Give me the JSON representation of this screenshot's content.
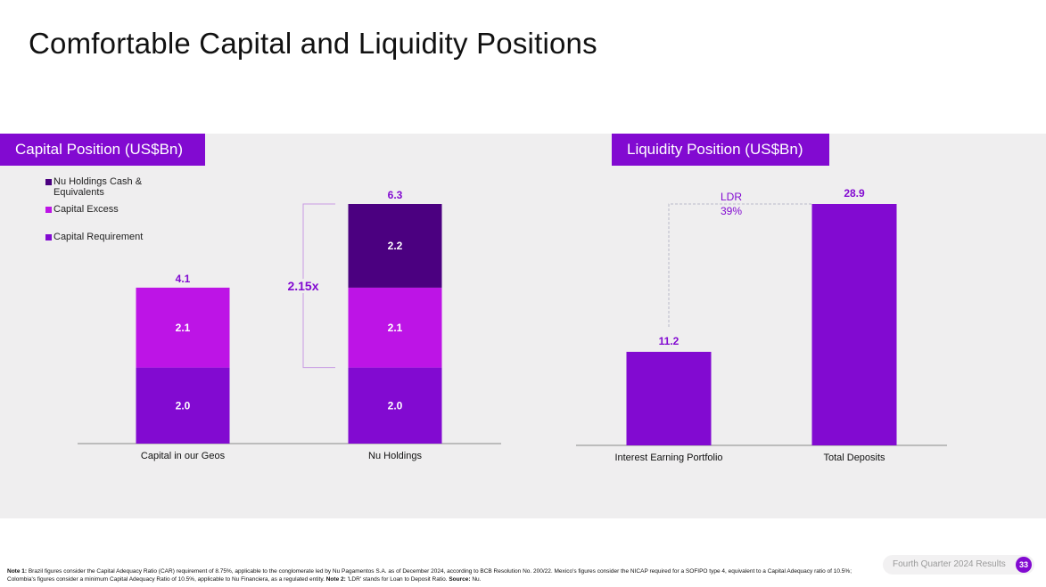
{
  "title": "Comfortable Capital and Liquidity Positions",
  "colors": {
    "capital_requirement": "#820ad1",
    "capital_excess": "#bd14e6",
    "cash": "#4b0080",
    "panel_label_bg": "#820ad1",
    "accent_text": "#820ad1",
    "bracket": "#c89ae3",
    "band_bg": "#efeeef"
  },
  "capital": {
    "label": "Capital Position  (US$Bn)",
    "legend": [
      {
        "label": "Nu Holdings Cash & Equivalents",
        "color_key": "cash"
      },
      {
        "label": "Capital Excess",
        "color_key": "capital_excess"
      },
      {
        "label": "Capital Requirement",
        "color_key": "capital_requirement"
      }
    ],
    "ratio_label": "2.15x"
  },
  "liquidity": {
    "label": "Liquidity Position (US$Bn)",
    "ldr_label": "LDR",
    "ldr_value": "39%"
  },
  "chart_data": [
    {
      "type": "bar",
      "stacked": true,
      "title": "Capital Position  (US$Bn)",
      "categories": [
        "Capital in our Geos",
        "Nu Holdings"
      ],
      "series": [
        {
          "name": "Capital Requirement",
          "values": [
            2.0,
            2.0
          ],
          "labels": [
            "2.0",
            "2.0"
          ]
        },
        {
          "name": "Capital Excess",
          "values": [
            2.1,
            2.1
          ],
          "labels": [
            "2.1",
            "2.1"
          ]
        },
        {
          "name": "Nu Holdings Cash & Equivalents",
          "values": [
            0,
            2.2
          ],
          "labels": [
            "",
            "2.2"
          ]
        }
      ],
      "totals": [
        4.1,
        6.3
      ],
      "total_labels": [
        "4.1",
        "6.3"
      ],
      "annotation": "2.15x",
      "ylim": [
        0,
        6.3
      ]
    },
    {
      "type": "bar",
      "title": "Liquidity Position (US$Bn)",
      "categories": [
        "Interest Earning Portfolio",
        "Total Deposits"
      ],
      "values": [
        11.2,
        28.9
      ],
      "value_labels": [
        "11.2",
        "28.9"
      ],
      "annotation": "LDR 39%",
      "ylim": [
        0,
        28.9
      ]
    }
  ],
  "footer": {
    "note1_label": "Note 1:",
    "note1_text": " Brazil figures consider the Capital Adequacy Ratio (CAR) requirement of 8.75%, applicable to the conglomerate led by Nu Pagamentos S.A. as of December 2024, according to BCB Resolution No. 200/22. Mexico's figures consider the NICAP required for a SOFIPO type 4, equivalent to a Capital Adequacy ratio of 10.5%; Colombia's figures consider a minimum Capital Adequacy Ratio of 10.5%, applicable to Nu Financiera, as a regulated entity. ",
    "note2_label": "Note 2:",
    "note2_text": " 'LDR' stands for Loan to Deposit Ratio. ",
    "source_label": "Source:",
    "source_text": " Nu.",
    "label": "Fourth Quarter 2024 Results",
    "page_number": "33"
  }
}
